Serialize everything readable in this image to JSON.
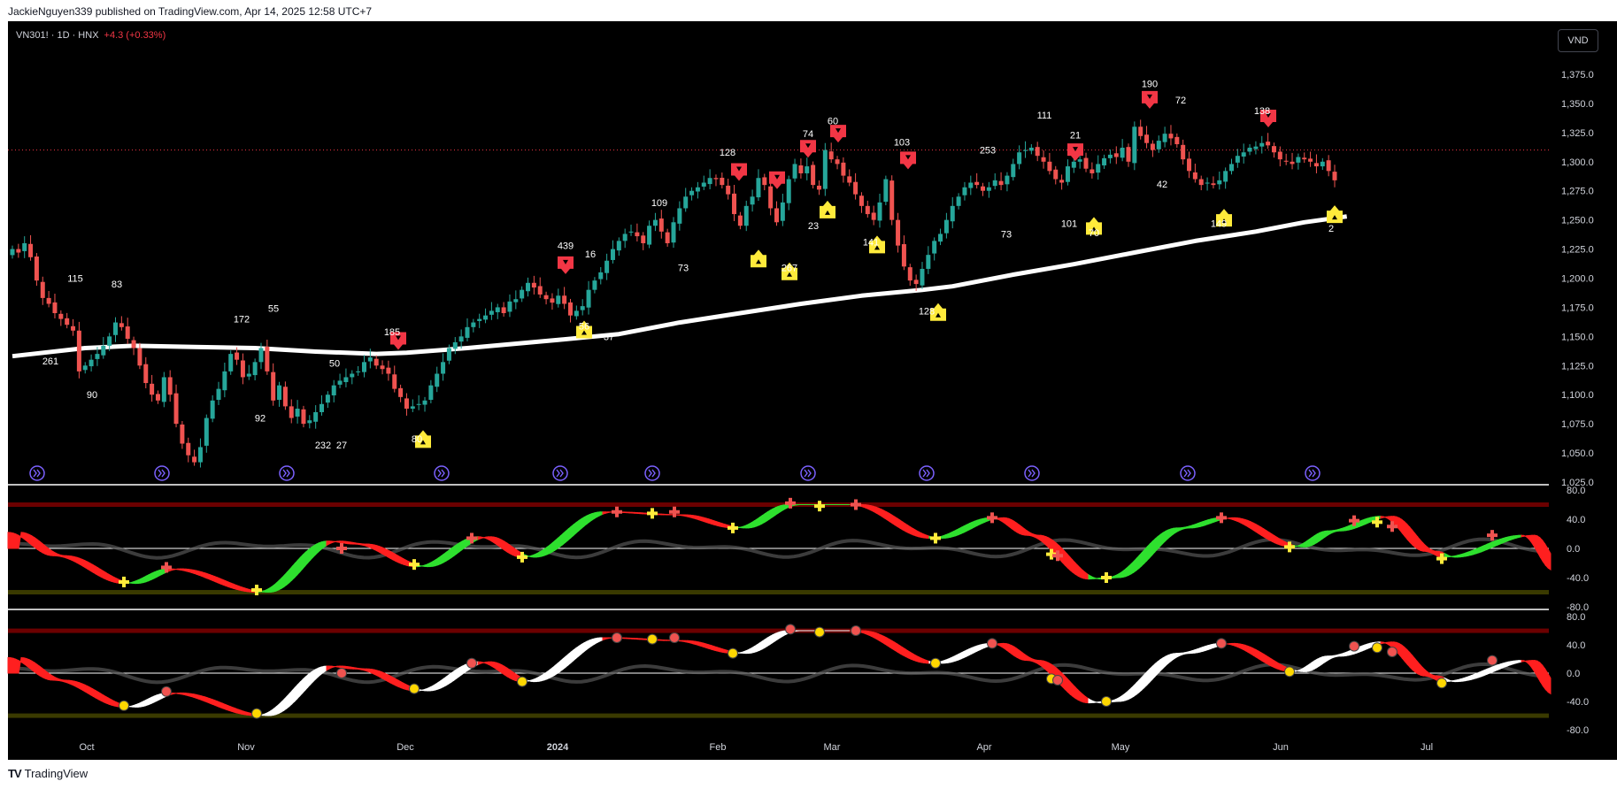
{
  "header": {
    "published": "JackieNguyen339 published on TradingView.com, Apr 14, 2025 12:58 UTC+7"
  },
  "symbol_bar": {
    "symbol": "VN301! · 1D · HNX",
    "change": "+4.3 (+0.33%)"
  },
  "currency_button": "VND",
  "footer": {
    "brand": "TradingView",
    "logo": "TV"
  },
  "colors": {
    "background": "#000000",
    "up": "#26a69a",
    "down": "#ef5350",
    "ma": "#ffffff",
    "sell_marker": "#f23645",
    "buy_marker": "#ffeb3b",
    "osc_up": "#2ee02e",
    "osc_down": "#ff1f1f",
    "osc2_up": "#ffffff",
    "dot_yellow": "#ffd700"
  },
  "price_axis": {
    "ticks": [
      "1,375.0",
      "1,350.0",
      "1,325.0",
      "1,300.0",
      "1,275.0",
      "1,250.0",
      "1,225.0",
      "1,200.0",
      "1,175.0",
      "1,150.0",
      "1,125.0",
      "1,100.0",
      "1,075.0",
      "1,050.0",
      "1,025.0"
    ],
    "min": 1025,
    "max": 1375
  },
  "osc1_axis": {
    "ticks": [
      "80.0",
      "40.0",
      "0.0",
      "-40.0",
      "-80.0"
    ]
  },
  "osc2_axis": {
    "ticks": [
      "80.0",
      "40.0",
      "0.0",
      "-40.0",
      "-80.0"
    ]
  },
  "time_axis": {
    "labels": [
      {
        "text": "Oct",
        "bold": false
      },
      {
        "text": "Nov",
        "bold": false
      },
      {
        "text": "Dec",
        "bold": false
      },
      {
        "text": "2024",
        "bold": true
      },
      {
        "text": "Feb",
        "bold": false
      },
      {
        "text": "Mar",
        "bold": false
      },
      {
        "text": "Apr",
        "bold": false
      },
      {
        "text": "May",
        "bold": false
      },
      {
        "text": "Jun",
        "bold": false
      },
      {
        "text": "Jul",
        "bold": false
      }
    ]
  },
  "chart_data": {
    "type": "candlestick",
    "title": "VN301! · 1D · HNX",
    "price_range": [
      1025,
      1375
    ],
    "ma_line": {
      "description": "white moving average",
      "points": [
        [
          0,
          1133
        ],
        [
          12,
          1140
        ],
        [
          20,
          1142
        ],
        [
          30,
          1141
        ],
        [
          40,
          1140
        ],
        [
          50,
          1137
        ],
        [
          60,
          1135
        ],
        [
          65,
          1136
        ],
        [
          75,
          1140
        ],
        [
          90,
          1147
        ],
        [
          100,
          1152
        ],
        [
          110,
          1162
        ],
        [
          120,
          1170
        ],
        [
          130,
          1178
        ],
        [
          140,
          1185
        ],
        [
          150,
          1190
        ],
        [
          155,
          1193
        ],
        [
          165,
          1203
        ],
        [
          175,
          1212
        ],
        [
          185,
          1222
        ],
        [
          195,
          1232
        ],
        [
          205,
          1240
        ],
        [
          213,
          1248
        ],
        [
          220,
          1253
        ]
      ]
    },
    "candles_close": [
      1225,
      1222,
      1230,
      1218,
      1198,
      1183,
      1178,
      1170,
      1165,
      1160,
      1155,
      1120,
      1125,
      1130,
      1135,
      1142,
      1150,
      1162,
      1158,
      1148,
      1140,
      1125,
      1110,
      1100,
      1095,
      1115,
      1100,
      1075,
      1058,
      1048,
      1042,
      1055,
      1080,
      1095,
      1105,
      1120,
      1135,
      1130,
      1115,
      1118,
      1128,
      1140,
      1120,
      1095,
      1108,
      1090,
      1080,
      1088,
      1075,
      1078,
      1085,
      1092,
      1100,
      1108,
      1112,
      1115,
      1118,
      1120,
      1128,
      1132,
      1125,
      1122,
      1118,
      1105,
      1098,
      1088,
      1090,
      1092,
      1095,
      1108,
      1118,
      1128,
      1140,
      1145,
      1150,
      1158,
      1162,
      1165,
      1168,
      1172,
      1175,
      1170,
      1180,
      1182,
      1190,
      1196,
      1192,
      1186,
      1182,
      1179,
      1185,
      1178,
      1168,
      1172,
      1176,
      1190,
      1198,
      1205,
      1215,
      1225,
      1232,
      1238,
      1240,
      1236,
      1230,
      1245,
      1250,
      1240,
      1230,
      1248,
      1260,
      1270,
      1275,
      1278,
      1282,
      1286,
      1285,
      1280,
      1272,
      1255,
      1245,
      1262,
      1270,
      1286,
      1280,
      1260,
      1248,
      1265,
      1285,
      1298,
      1290,
      1296,
      1280,
      1276,
      1310,
      1302,
      1298,
      1288,
      1282,
      1272,
      1262,
      1255,
      1250,
      1265,
      1285,
      1250,
      1228,
      1210,
      1198,
      1195,
      1208,
      1220,
      1232,
      1238,
      1250,
      1262,
      1270,
      1278,
      1282,
      1280,
      1275,
      1278,
      1284,
      1280,
      1288,
      1298,
      1308,
      1310,
      1312,
      1305,
      1300,
      1292,
      1285,
      1282,
      1296,
      1300,
      1302,
      1294,
      1290,
      1298,
      1303,
      1306,
      1304,
      1312,
      1300,
      1330,
      1322,
      1316,
      1310,
      1318,
      1324,
      1320,
      1315,
      1302,
      1292,
      1285,
      1280,
      1282,
      1280,
      1284,
      1292,
      1298,
      1305,
      1308,
      1312,
      1313,
      1316,
      1314,
      1308,
      1302,
      1300,
      1298,
      1304,
      1302,
      1300,
      1296,
      1300,
      1292,
      1284
    ],
    "annotations": [
      {
        "label": "261",
        "x": 57,
        "y": 1126,
        "kind": "num"
      },
      {
        "label": "115",
        "x": 85,
        "y": 1197,
        "kind": "num"
      },
      {
        "label": "90",
        "x": 104,
        "y": 1097,
        "kind": "num"
      },
      {
        "label": "83",
        "x": 132,
        "y": 1192,
        "kind": "num"
      },
      {
        "label": "172",
        "x": 273,
        "y": 1162,
        "kind": "num"
      },
      {
        "label": "92",
        "x": 294,
        "y": 1077,
        "kind": "num"
      },
      {
        "label": "55",
        "x": 309,
        "y": 1171,
        "kind": "num"
      },
      {
        "label": "50",
        "x": 378,
        "y": 1124,
        "kind": "num"
      },
      {
        "label": "232",
        "x": 365,
        "y": 1054,
        "kind": "num"
      },
      {
        "label": "27",
        "x": 386,
        "y": 1054,
        "kind": "num"
      },
      {
        "label": "185",
        "x": 443,
        "y": 1151,
        "kind": "num"
      },
      {
        "label": "80",
        "x": 471,
        "y": 1059,
        "kind": "num"
      },
      {
        "label": "439",
        "x": 639,
        "y": 1225,
        "kind": "num"
      },
      {
        "label": "16",
        "x": 667,
        "y": 1218,
        "kind": "num"
      },
      {
        "label": "56",
        "x": 660,
        "y": 1156,
        "kind": "num"
      },
      {
        "label": "37",
        "x": 688,
        "y": 1147,
        "kind": "num"
      },
      {
        "label": "109",
        "x": 745,
        "y": 1262,
        "kind": "num"
      },
      {
        "label": "73",
        "x": 772,
        "y": 1206,
        "kind": "num"
      },
      {
        "label": "128",
        "x": 822,
        "y": 1305,
        "kind": "num"
      },
      {
        "label": "74",
        "x": 913,
        "y": 1321,
        "kind": "num"
      },
      {
        "label": "60",
        "x": 941,
        "y": 1332,
        "kind": "num"
      },
      {
        "label": "23",
        "x": 919,
        "y": 1242,
        "kind": "num"
      },
      {
        "label": "267",
        "x": 892,
        "y": 1206,
        "kind": "num"
      },
      {
        "label": "103",
        "x": 1019,
        "y": 1314,
        "kind": "num"
      },
      {
        "label": "141",
        "x": 984,
        "y": 1228,
        "kind": "num"
      },
      {
        "label": "128",
        "x": 1047,
        "y": 1169,
        "kind": "num"
      },
      {
        "label": "253",
        "x": 1116,
        "y": 1307,
        "kind": "num"
      },
      {
        "label": "73",
        "x": 1137,
        "y": 1235,
        "kind": "num"
      },
      {
        "label": "111",
        "x": 1180,
        "y": 1337,
        "kind": "num"
      },
      {
        "label": "21",
        "x": 1215,
        "y": 1320,
        "kind": "num"
      },
      {
        "label": "101",
        "x": 1208,
        "y": 1244,
        "kind": "num"
      },
      {
        "label": "70",
        "x": 1236,
        "y": 1236,
        "kind": "num"
      },
      {
        "label": "190",
        "x": 1299,
        "y": 1364,
        "kind": "num"
      },
      {
        "label": "72",
        "x": 1334,
        "y": 1350,
        "kind": "num"
      },
      {
        "label": "42",
        "x": 1313,
        "y": 1278,
        "kind": "num"
      },
      {
        "label": "149",
        "x": 1377,
        "y": 1244,
        "kind": "num"
      },
      {
        "label": "138",
        "x": 1426,
        "y": 1341,
        "kind": "num"
      },
      {
        "label": "2",
        "x": 1504,
        "y": 1240,
        "kind": "num"
      }
    ],
    "sell_markers": [
      [
        450,
        1140
      ],
      [
        639,
        1205
      ],
      [
        835,
        1285
      ],
      [
        878,
        1278
      ],
      [
        913,
        1305
      ],
      [
        947,
        1318
      ],
      [
        1026,
        1295
      ],
      [
        1215,
        1302
      ],
      [
        1299,
        1347
      ],
      [
        1433,
        1331
      ]
    ],
    "buy_markers": [
      [
        478,
        1068
      ],
      [
        660,
        1162
      ],
      [
        857,
        1223
      ],
      [
        892,
        1212
      ],
      [
        935,
        1265
      ],
      [
        991,
        1235
      ],
      [
        1060,
        1177
      ],
      [
        1236,
        1251
      ],
      [
        1383,
        1258
      ],
      [
        1508,
        1261
      ]
    ],
    "nav_buttons_x": [
      42,
      183,
      324,
      499,
      633,
      737,
      913,
      1047,
      1166,
      1342,
      1483
    ]
  }
}
